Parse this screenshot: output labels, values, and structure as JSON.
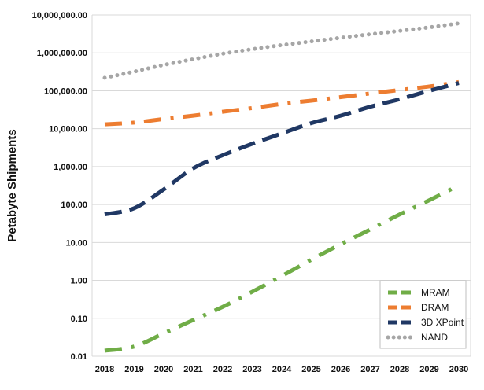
{
  "chart_data": {
    "type": "line",
    "title": "",
    "xlabel": "",
    "ylabel": "Petabyte Shipments",
    "yscale": "log",
    "ylim": [
      0.01,
      10000000
    ],
    "grid": true,
    "legend_position": "bottom-right",
    "x": [
      "2018",
      "2019",
      "2020",
      "2021",
      "2022",
      "2023",
      "2024",
      "2025",
      "2026",
      "2027",
      "2028",
      "2029",
      "2030"
    ],
    "y_ticks": [
      0.01,
      0.1,
      1,
      10,
      100,
      1000,
      10000,
      100000,
      1000000,
      10000000
    ],
    "y_tick_labels": [
      "0.01",
      "0.10",
      "1.00",
      "10.00",
      "100.00",
      "1,000.00",
      "10,000.00",
      "100,000.00",
      "1,000,000.00",
      "10,000,000.00"
    ],
    "series": [
      {
        "name": "MRAM",
        "color": "#70AD47",
        "dash": "dashdot",
        "values": [
          0.014,
          0.018,
          0.04,
          0.09,
          0.2,
          0.5,
          1.3,
          3.5,
          9,
          22,
          55,
          130,
          320
        ]
      },
      {
        "name": "DRAM",
        "color": "#ED7D31",
        "dash": "dashdot",
        "values": [
          13000,
          14500,
          18000,
          22000,
          28000,
          35000,
          45000,
          55000,
          68000,
          85000,
          105000,
          130000,
          170000
        ]
      },
      {
        "name": "3D XPoint",
        "color": "#203864",
        "dash": "dash",
        "values": [
          55,
          80,
          250,
          900,
          2000,
          4000,
          7500,
          14000,
          22000,
          38000,
          60000,
          100000,
          160000
        ]
      },
      {
        "name": "NAND",
        "color": "#A6A6A6",
        "dash": "dot",
        "values": [
          220000,
          320000,
          480000,
          680000,
          950000,
          1250000,
          1600000,
          2000000,
          2500000,
          3100000,
          3800000,
          4700000,
          6000000
        ]
      }
    ]
  }
}
